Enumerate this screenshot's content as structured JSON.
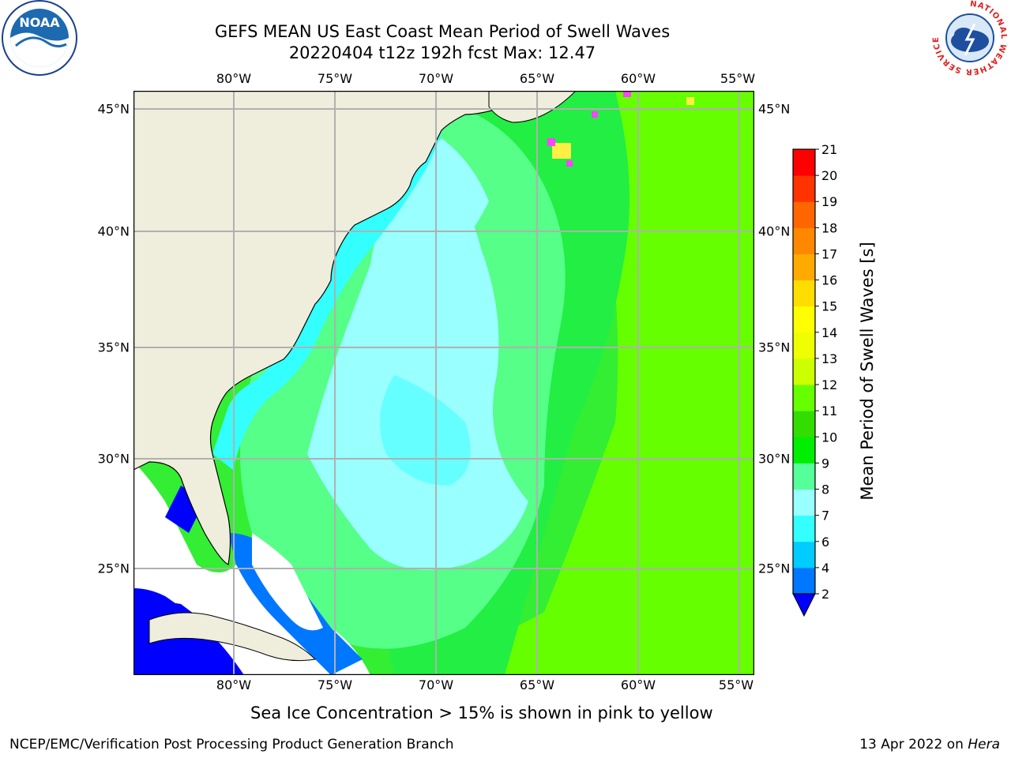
{
  "header": {
    "title_line1": "GEFS MEAN US East Coast Mean Period of Swell Waves",
    "title_line2": "20220404 t12z 192h fcst   Max: 12.47"
  },
  "logos": {
    "noaa_text": "NOAA",
    "nws_ring_text": "NATIONAL WEATHER SERVICE"
  },
  "map": {
    "lon_labels": [
      "80°W",
      "75°W",
      "70°W",
      "65°W",
      "60°W",
      "55°W"
    ],
    "lat_labels": [
      "45°N",
      "40°N",
      "35°N",
      "30°N",
      "25°N"
    ],
    "colors": {
      "land": "#efeedd",
      "ice_water": "#0000ff",
      "bg_green": "#33ee33",
      "frame": "#000000",
      "grid": "#b0b0b0"
    }
  },
  "colorbar": {
    "label": "Mean Period of Swell Waves [s]",
    "ticks": [
      "2",
      "4",
      "6",
      "7",
      "8",
      "9",
      "10",
      "11",
      "12",
      "13",
      "14",
      "15",
      "16",
      "17",
      "18",
      "19",
      "20",
      "21"
    ],
    "colors": [
      "#0077ff",
      "#00ccff",
      "#33ffff",
      "#99ffff",
      "#55ff99",
      "#00ee00",
      "#33dd00",
      "#66ff00",
      "#ccff00",
      "#eeff00",
      "#ffff00",
      "#ffdd00",
      "#ffaa00",
      "#ff8800",
      "#ff6600",
      "#ff3300",
      "#ff0000"
    ],
    "under_color": "#0000ff"
  },
  "notes": {
    "sea_ice": "Sea Ice Concentration > 15% is shown in pink to yellow"
  },
  "footer": {
    "left": "NCEP/EMC/Verification Post Processing Product Generation Branch",
    "right_date": "13 Apr 2022 on ",
    "right_host": "Hera"
  }
}
